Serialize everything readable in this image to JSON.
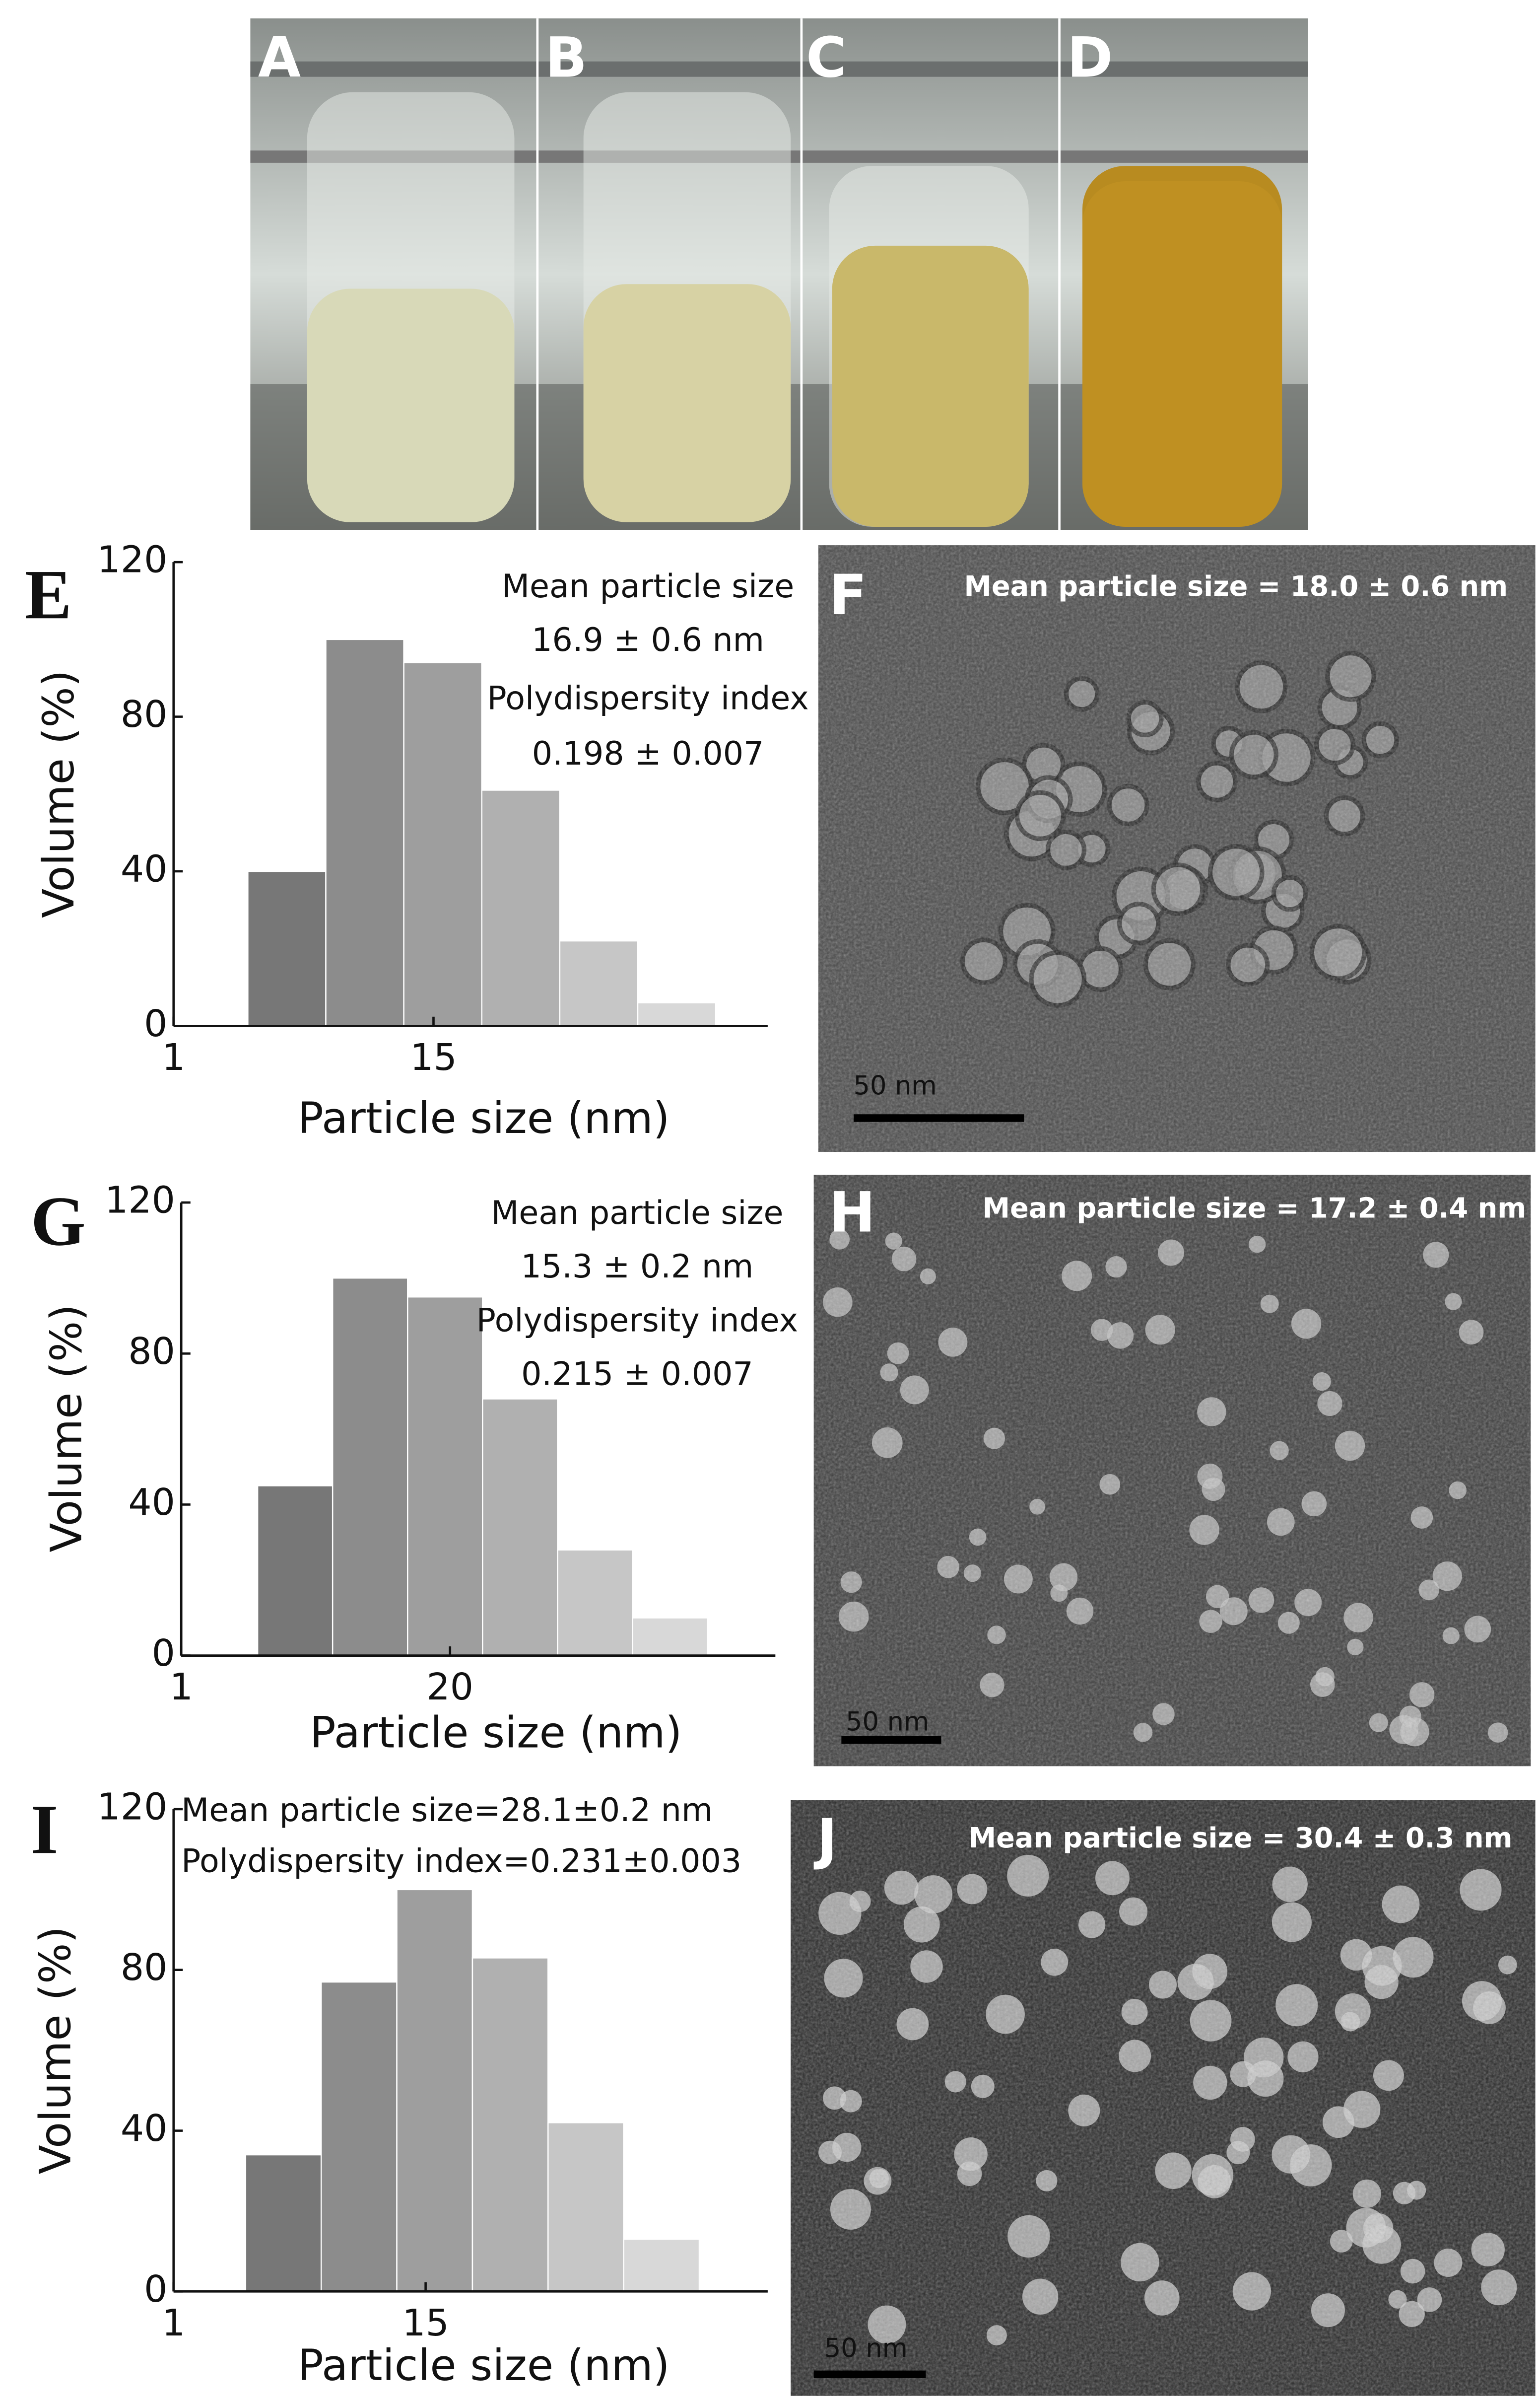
{
  "photo_labels": [
    "A",
    "B",
    "C",
    "D"
  ],
  "chart_data": [
    {
      "type": "histogram",
      "panel": "E",
      "bins": [
        5,
        9.2,
        13.4,
        17.6,
        21.8,
        26,
        30.2
      ],
      "values": [
        40,
        100,
        94,
        61,
        22,
        6
      ],
      "colors": [
        "#777777",
        "#8c8c8c",
        "#9e9e9e",
        "#b0b0b0",
        "#c6c6c6",
        "#d8d8d8"
      ],
      "xlim": [
        1,
        33
      ],
      "xticks": [
        1,
        15
      ],
      "ylim": [
        0,
        120
      ],
      "yticks": [
        0,
        40,
        80,
        120
      ],
      "xlabel": "Particle size (nm)",
      "ylabel": "Volume (%)",
      "annotations": [
        "Mean particle size",
        "16.9 ± 0.6 nm",
        "Polydispersity index",
        "0.198 ± 0.007"
      ]
    },
    {
      "type": "histogram",
      "panel": "G",
      "bins": [
        6.4,
        11.7,
        17,
        22.3,
        27.6,
        32.9,
        38.2
      ],
      "values": [
        45,
        100,
        95,
        68,
        28,
        10
      ],
      "colors": [
        "#777777",
        "#8c8c8c",
        "#9e9e9e",
        "#b0b0b0",
        "#c6c6c6",
        "#d8d8d8"
      ],
      "xlim": [
        1,
        43
      ],
      "xticks": [
        1,
        20
      ],
      "ylim": [
        0,
        120
      ],
      "yticks": [
        0,
        40,
        80,
        120
      ],
      "xlabel": "Particle size (nm)",
      "ylabel": "Volume (%)",
      "annotations": [
        "Mean particle size",
        "15.3 ± 0.2 nm",
        "Polydispersity index",
        "0.215 ± 0.007"
      ]
    },
    {
      "type": "histogram",
      "panel": "I",
      "bins": [
        5,
        9.2,
        13.4,
        17.6,
        21.8,
        26,
        30.2
      ],
      "values": [
        34,
        77,
        100,
        83,
        42,
        13
      ],
      "colors": [
        "#777777",
        "#8c8c8c",
        "#9e9e9e",
        "#b0b0b0",
        "#c6c6c6",
        "#d8d8d8"
      ],
      "xlim": [
        1,
        34
      ],
      "xticks": [
        1,
        15
      ],
      "ylim": [
        0,
        120
      ],
      "yticks": [
        0,
        40,
        80,
        120
      ],
      "xlabel": "Particle size (nm)",
      "ylabel": "Volume (%)",
      "annotations": [
        "Mean particle size=28.1±0.2 nm",
        "Polydispersity index=0.231±0.003"
      ]
    }
  ],
  "micrographs": [
    {
      "panel": "F",
      "caption": "Mean particle size = 18.0 ± 0.6 nm",
      "scale_bar": "50 nm"
    },
    {
      "panel": "H",
      "caption": "Mean particle size = 17.2 ± 0.4 nm",
      "scale_bar": "50 nm"
    },
    {
      "panel": "J",
      "caption": "Mean particle size = 30.4 ± 0.3 nm",
      "scale_bar": "50 nm"
    }
  ]
}
